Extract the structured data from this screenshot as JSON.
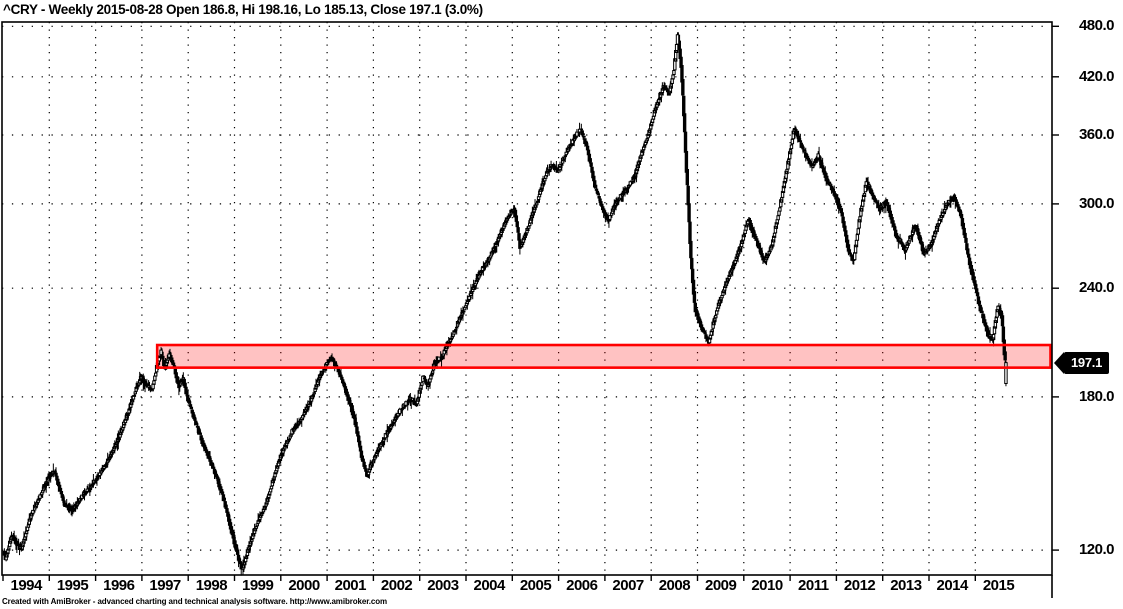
{
  "title": "^CRY - Weekly 2015-08-28 Open 186.8, Hi 198.16, Lo 185.13, Close 197.1 (3.0%)",
  "footer": "Created with AmiBroker - advanced charting and technical analysis software. http://www.amibroker.com",
  "colors": {
    "background": "#ffffff",
    "foreground": "#000000",
    "band_border": "#ff0000",
    "band_fill": "rgba(255,0,0,0.24)",
    "tag_bg": "#000000",
    "tag_text": "#ffffff"
  },
  "chart_data": {
    "type": "candlestick",
    "symbol": "^CRY",
    "timeframe": "Weekly",
    "title": "^CRY - Weekly 2015-08-28 Open 186.8, Hi 198.16, Lo 185.13, Close 197.1 (3.0%)",
    "last_bar": {
      "date": "2015-08-28",
      "open": 186.8,
      "high": 198.16,
      "low": 185.13,
      "close": 197.1,
      "change": "3.0%"
    },
    "last_price_marker": {
      "label": "197.1",
      "price": 197.1
    },
    "y_axis": {
      "scale": "log",
      "tick_values": [
        480,
        420,
        360,
        300,
        240,
        180,
        120
      ],
      "tick_labels": [
        "480.0",
        "420.0",
        "360.0",
        "300.0",
        "240.0",
        "180.0",
        "120.0"
      ],
      "grid": "dotted"
    },
    "x_axis": {
      "tick_years": [
        1994,
        1995,
        1996,
        1997,
        1998,
        1999,
        2000,
        2001,
        2002,
        2003,
        2004,
        2005,
        2006,
        2007,
        2008,
        2009,
        2010,
        2011,
        2012,
        2013,
        2014,
        2015
      ],
      "tick_labels": [
        "1994",
        "1995",
        "1996",
        "1997",
        "1998",
        "1999",
        "2000",
        "2001",
        "2002",
        "2003",
        "2004",
        "2005",
        "2006",
        "2007",
        "2008",
        "2009",
        "2010",
        "2011",
        "2012",
        "2013",
        "2014",
        "2015"
      ],
      "grid": "dotted"
    },
    "highlight_band": {
      "start_year": 1997.33,
      "extends_to": "right-edge",
      "price_top": 206.5,
      "price_bottom": 194.5
    },
    "series_close_sampled": [
      [
        1994.0,
        121
      ],
      [
        1994.06,
        117
      ],
      [
        1994.2,
        125
      ],
      [
        1994.4,
        120
      ],
      [
        1994.6,
        131
      ],
      [
        1994.85,
        140
      ],
      [
        1995.02,
        146
      ],
      [
        1995.12,
        148
      ],
      [
        1995.32,
        136
      ],
      [
        1995.5,
        133
      ],
      [
        1995.7,
        138
      ],
      [
        1995.9,
        142
      ],
      [
        1996.1,
        147
      ],
      [
        1996.3,
        153
      ],
      [
        1996.5,
        161
      ],
      [
        1996.7,
        172
      ],
      [
        1996.88,
        184
      ],
      [
        1997.0,
        190
      ],
      [
        1997.1,
        186
      ],
      [
        1997.22,
        183
      ],
      [
        1997.33,
        195
      ],
      [
        1997.42,
        203
      ],
      [
        1997.5,
        194
      ],
      [
        1997.6,
        202
      ],
      [
        1997.7,
        195
      ],
      [
        1997.8,
        185
      ],
      [
        1997.9,
        189
      ],
      [
        1998.0,
        179
      ],
      [
        1998.15,
        169
      ],
      [
        1998.35,
        158
      ],
      [
        1998.55,
        149
      ],
      [
        1998.75,
        139
      ],
      [
        1998.95,
        126
      ],
      [
        1999.1,
        117
      ],
      [
        1999.18,
        114
      ],
      [
        1999.32,
        121
      ],
      [
        1999.5,
        129
      ],
      [
        1999.7,
        136
      ],
      [
        1999.9,
        148
      ],
      [
        2000.05,
        156
      ],
      [
        2000.25,
        164
      ],
      [
        2000.45,
        170
      ],
      [
        2000.65,
        178
      ],
      [
        2000.85,
        190
      ],
      [
        2001.0,
        197
      ],
      [
        2001.1,
        200
      ],
      [
        2001.25,
        193
      ],
      [
        2001.4,
        184
      ],
      [
        2001.6,
        170
      ],
      [
        2001.75,
        154
      ],
      [
        2001.87,
        146
      ],
      [
        2001.97,
        151
      ],
      [
        2002.2,
        160
      ],
      [
        2002.4,
        167
      ],
      [
        2002.6,
        174
      ],
      [
        2002.8,
        179
      ],
      [
        2002.95,
        177
      ],
      [
        2003.08,
        190
      ],
      [
        2003.18,
        185
      ],
      [
        2003.32,
        196
      ],
      [
        2003.5,
        201
      ],
      [
        2003.7,
        211
      ],
      [
        2003.9,
        223
      ],
      [
        2004.1,
        236
      ],
      [
        2004.3,
        249
      ],
      [
        2004.5,
        259
      ],
      [
        2004.7,
        273
      ],
      [
        2004.9,
        289
      ],
      [
        2005.05,
        297
      ],
      [
        2005.18,
        267
      ],
      [
        2005.35,
        282
      ],
      [
        2005.55,
        303
      ],
      [
        2005.75,
        326
      ],
      [
        2005.88,
        333
      ],
      [
        2006.0,
        327
      ],
      [
        2006.15,
        342
      ],
      [
        2006.35,
        357
      ],
      [
        2006.48,
        366
      ],
      [
        2006.62,
        349
      ],
      [
        2006.8,
        313
      ],
      [
        2006.95,
        297
      ],
      [
        2007.08,
        287
      ],
      [
        2007.25,
        301
      ],
      [
        2007.45,
        311
      ],
      [
        2007.65,
        322
      ],
      [
        2007.82,
        346
      ],
      [
        2007.95,
        361
      ],
      [
        2008.1,
        386
      ],
      [
        2008.28,
        410
      ],
      [
        2008.4,
        402
      ],
      [
        2008.5,
        428
      ],
      [
        2008.58,
        470
      ],
      [
        2008.66,
        430
      ],
      [
        2008.76,
        336
      ],
      [
        2008.86,
        262
      ],
      [
        2008.95,
        228
      ],
      [
        2009.1,
        216
      ],
      [
        2009.25,
        208
      ],
      [
        2009.42,
        226
      ],
      [
        2009.6,
        241
      ],
      [
        2009.8,
        256
      ],
      [
        2009.95,
        269
      ],
      [
        2010.1,
        288
      ],
      [
        2010.3,
        271
      ],
      [
        2010.45,
        257
      ],
      [
        2010.62,
        269
      ],
      [
        2010.8,
        300
      ],
      [
        2010.95,
        331
      ],
      [
        2011.1,
        367
      ],
      [
        2011.28,
        347
      ],
      [
        2011.48,
        331
      ],
      [
        2011.62,
        341
      ],
      [
        2011.78,
        321
      ],
      [
        2011.92,
        312
      ],
      [
        2012.1,
        296
      ],
      [
        2012.28,
        264
      ],
      [
        2012.38,
        258
      ],
      [
        2012.52,
        291
      ],
      [
        2012.66,
        319
      ],
      [
        2012.8,
        306
      ],
      [
        2012.95,
        296
      ],
      [
        2013.1,
        301
      ],
      [
        2013.3,
        276
      ],
      [
        2013.5,
        266
      ],
      [
        2013.72,
        284
      ],
      [
        2013.9,
        263
      ],
      [
        2014.05,
        269
      ],
      [
        2014.22,
        286
      ],
      [
        2014.4,
        300
      ],
      [
        2014.55,
        306
      ],
      [
        2014.7,
        291
      ],
      [
        2014.85,
        262
      ],
      [
        2014.95,
        249
      ],
      [
        2015.1,
        229
      ],
      [
        2015.28,
        213
      ],
      [
        2015.38,
        209
      ],
      [
        2015.5,
        229
      ],
      [
        2015.58,
        223
      ],
      [
        2015.63,
        204
      ],
      [
        2015.66,
        197.1
      ]
    ]
  }
}
